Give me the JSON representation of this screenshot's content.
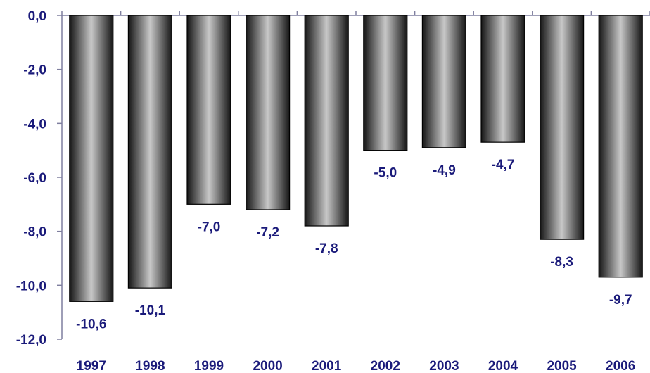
{
  "colors": {
    "text": "#1a1a7a",
    "axis": "#7f7f9f",
    "bar_dark": "#151515",
    "bar_light": "#c8c8c8"
  },
  "chart_data": {
    "type": "bar",
    "title": "",
    "xlabel": "",
    "ylabel": "",
    "categories": [
      "1997",
      "1998",
      "1999",
      "2000",
      "2001",
      "2002",
      "2003",
      "2004",
      "2005",
      "2006"
    ],
    "values": [
      -10.6,
      -10.1,
      -7.0,
      -7.2,
      -7.8,
      -5.0,
      -4.9,
      -4.7,
      -8.3,
      -9.7
    ],
    "value_labels": [
      "-10,6",
      "-10,1",
      "-7,0",
      "-7,2",
      "-7,8",
      "-5,0",
      "-4,9",
      "-4,7",
      "-8,3",
      "-9,7"
    ],
    "ylim": [
      -12.0,
      0.0
    ],
    "yticks": [
      0,
      -2,
      -4,
      -6,
      -8,
      -10,
      -12
    ],
    "ytick_labels": [
      "0,0",
      "-2,0",
      "-4,0",
      "-6,0",
      "-8,0",
      "-10,0",
      "-12,0"
    ],
    "grid": false,
    "legend": "none"
  }
}
